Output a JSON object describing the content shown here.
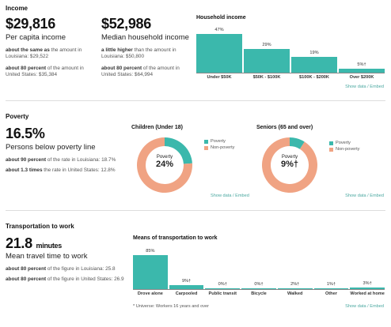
{
  "income": {
    "title": "Income",
    "per_capita": {
      "value": "$29,816",
      "label": "Per capita income",
      "cmp1_bold": "about the same as",
      "cmp1_rest": " the amount in Louisiana: $29,522",
      "cmp2_bold": "about 80 percent",
      "cmp2_rest": " of the amount in United States: $35,384"
    },
    "median": {
      "value": "$52,986",
      "label": "Median household income",
      "cmp1_bold": "a little higher",
      "cmp1_rest": " than the amount in Louisiana: $50,800",
      "cmp2_bold": "about 80 percent",
      "cmp2_rest": " of the amount in United States: $64,994"
    },
    "show_data": "Show data / Embed"
  },
  "poverty": {
    "title": "Poverty",
    "value": "16.5%",
    "label": "Persons below poverty line",
    "cmp1_bold": "about 90 percent",
    "cmp1_rest": " of the rate in Louisiana: 18.7%",
    "cmp2_bold": "about 1.3 times",
    "cmp2_rest": " the rate in United States: 12.8%",
    "show_data_children": "Show data / Embed",
    "show_data_seniors": "Show data / Embed"
  },
  "transportation": {
    "title": "Transportation to work",
    "value": "21.8",
    "unit": "minutes",
    "label": "Mean travel time to work",
    "cmp1_bold": "about 80 percent",
    "cmp1_rest": " of the figure in Louisiana: 25.8",
    "cmp2_bold": "about 80 percent",
    "cmp2_rest": " of the figure in United States: 26.9",
    "footnote": "* Universe: Workers 16 years and over",
    "show_data": "Show data / Embed"
  },
  "colors": {
    "teal": "#3bb8ac",
    "orange": "#f0a383",
    "link": "#4aa8a0"
  },
  "chart_data": [
    {
      "type": "bar",
      "title": "Household income",
      "categories": [
        "Under $50K",
        "$50K - $100K",
        "$100K - $200K",
        "Over $200K"
      ],
      "values": [
        47,
        29,
        19,
        5
      ],
      "value_labels": [
        "47%",
        "29%",
        "19%",
        "5%†"
      ],
      "ylim": [
        0,
        47
      ]
    },
    {
      "type": "pie",
      "title": "Children (Under 18)",
      "labels": [
        "Poverty",
        "Non-poverty"
      ],
      "values": [
        24,
        76
      ],
      "center_label": "Poverty",
      "center_value": "24%"
    },
    {
      "type": "pie",
      "title": "Seniors (65 and over)",
      "labels": [
        "Poverty",
        "Non-poverty"
      ],
      "values": [
        9,
        91
      ],
      "center_label": "Poverty",
      "center_value": "9%†"
    },
    {
      "type": "bar",
      "title": "Means of transportation to work",
      "categories": [
        "Drove alone",
        "Carpooled",
        "Public transit",
        "Bicycle",
        "Walked",
        "Other",
        "Worked at home"
      ],
      "values": [
        85,
        9,
        0,
        0,
        2,
        1,
        3
      ],
      "value_labels": [
        "85%",
        "9%†",
        "0%†",
        "0%†",
        "2%†",
        "1%†",
        "3%†"
      ],
      "ylim": [
        0,
        85
      ]
    }
  ]
}
